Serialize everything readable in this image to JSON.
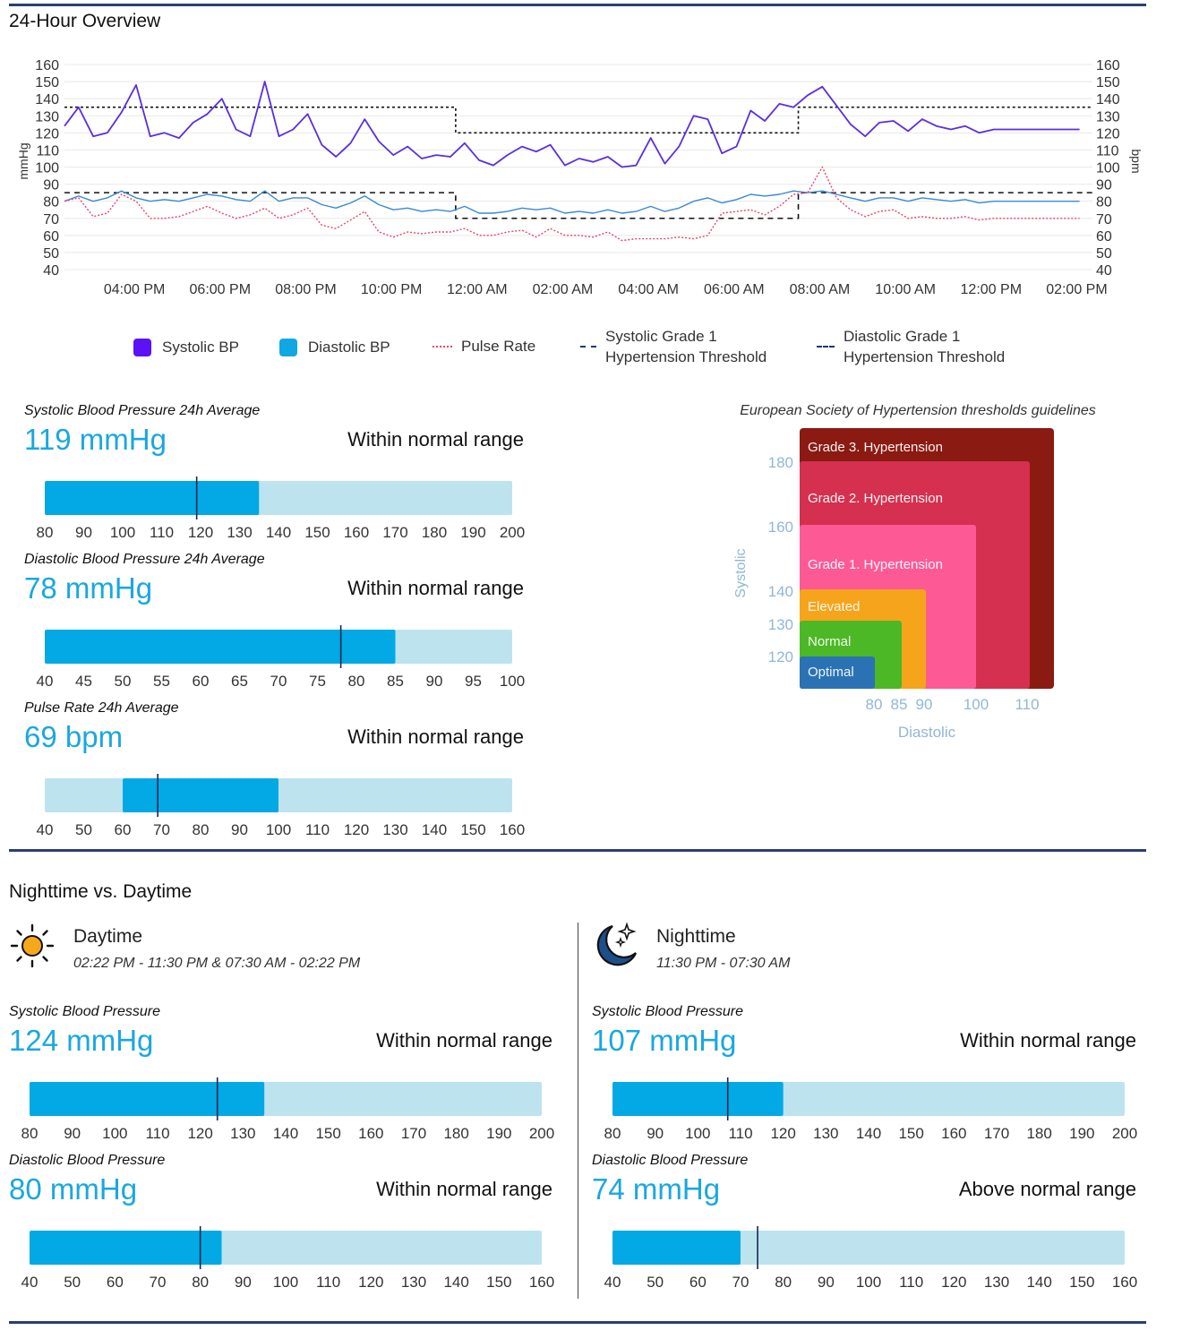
{
  "overview": {
    "title": "24-Hour Overview",
    "left_axis_label": "mmHg",
    "right_axis_label": "bpm",
    "y_ticks": [
      "160",
      "150",
      "140",
      "130",
      "120",
      "110",
      "100",
      "90",
      "80",
      "70",
      "60",
      "50",
      "40"
    ],
    "x_ticks": [
      "04:00 PM",
      "06:00 PM",
      "08:00 PM",
      "10:00 PM",
      "12:00 AM",
      "02:00 AM",
      "04:00 AM",
      "06:00 AM",
      "08:00 AM",
      "10:00 AM",
      "12:00 PM",
      "02:00 PM"
    ]
  },
  "chart_data": [
    {
      "type": "line",
      "title": "24-Hour Overview",
      "ylabel": "mmHg",
      "y2label": "bpm",
      "ylim": [
        40,
        160
      ],
      "x_range": [
        "02:22 PM",
        "02:22 PM"
      ],
      "x_hours": [
        0.0,
        0.33,
        0.67,
        1.0,
        1.33,
        1.67,
        2.0,
        2.33,
        2.67,
        3.0,
        3.33,
        3.67,
        4.0,
        4.33,
        4.67,
        5.0,
        5.33,
        5.67,
        6.0,
        6.33,
        6.67,
        7.0,
        7.33,
        7.67,
        8.0,
        8.33,
        8.67,
        9.0,
        9.33,
        9.67,
        10.0,
        10.33,
        10.67,
        11.0,
        11.33,
        11.67,
        12.0,
        12.33,
        12.67,
        13.0,
        13.33,
        13.67,
        14.0,
        14.33,
        14.67,
        15.0,
        15.33,
        15.67,
        16.0,
        16.33,
        16.67,
        17.0,
        17.33,
        17.67,
        18.0,
        18.33,
        18.67,
        19.0,
        19.33,
        19.67,
        20.0,
        20.33,
        20.67,
        21.0,
        21.33,
        21.67,
        22.0,
        22.33,
        22.67,
        23.0,
        23.33,
        23.67
      ],
      "series": [
        {
          "name": "Systolic BP",
          "color": "#5b2ee0",
          "values": [
            124,
            135,
            118,
            120,
            132,
            148,
            118,
            120,
            117,
            126,
            131,
            140,
            122,
            118,
            150,
            118,
            122,
            131,
            113,
            106,
            114,
            128,
            115,
            107,
            112,
            105,
            107,
            106,
            114,
            104,
            101,
            107,
            112,
            109,
            113,
            101,
            105,
            103,
            106,
            100,
            101,
            117,
            102,
            112,
            130,
            128,
            108,
            112,
            133,
            127,
            137,
            135,
            142,
            147,
            136,
            125,
            118,
            126,
            127,
            121,
            128,
            124,
            122,
            124,
            120,
            122,
            122,
            122,
            122,
            122,
            122,
            122
          ]
        },
        {
          "name": "Diastolic BP",
          "color": "#3a88d6",
          "values": [
            80,
            83,
            80,
            82,
            86,
            82,
            80,
            81,
            80,
            82,
            84,
            83,
            81,
            80,
            86,
            80,
            82,
            82,
            78,
            76,
            79,
            83,
            78,
            75,
            76,
            74,
            75,
            74,
            77,
            73,
            73,
            74,
            76,
            75,
            76,
            73,
            74,
            73,
            75,
            73,
            74,
            77,
            74,
            76,
            80,
            82,
            79,
            81,
            84,
            83,
            84,
            86,
            85,
            86,
            84,
            82,
            80,
            82,
            82,
            80,
            82,
            81,
            80,
            81,
            79,
            80,
            80,
            80,
            80,
            80,
            80,
            80
          ]
        },
        {
          "name": "Pulse Rate",
          "color": "#e8456b",
          "values": [
            80,
            82,
            71,
            73,
            84,
            80,
            70,
            70,
            71,
            74,
            77,
            73,
            70,
            72,
            76,
            70,
            72,
            76,
            66,
            64,
            69,
            74,
            62,
            59,
            62,
            61,
            62,
            62,
            64,
            60,
            60,
            62,
            63,
            59,
            64,
            60,
            60,
            59,
            62,
            57,
            58,
            58,
            58,
            59,
            58,
            60,
            73,
            74,
            75,
            72,
            77,
            84,
            85,
            100,
            82,
            75,
            71,
            74,
            75,
            70,
            71,
            70,
            70,
            71,
            69,
            70,
            70,
            70,
            70,
            70,
            70,
            70
          ]
        }
      ],
      "thresholds": [
        {
          "name": "Systolic Grade 1 Hypertension Threshold",
          "day": 135,
          "night": 120
        },
        {
          "name": "Diastolic Grade 1 Hypertension Threshold",
          "day": 85,
          "night": 70
        }
      ],
      "night_window": [
        "11:30 PM",
        "07:30 AM"
      ]
    },
    {
      "type": "heatmap",
      "title": "European Society of Hypertension thresholds guidelines",
      "xlabel": "Diastolic",
      "ylabel": "Systolic",
      "categories": [
        "Optimal",
        "Normal",
        "Elevated",
        "Grade 1. Hypertension",
        "Grade 2. Hypertension",
        "Grade 3. Hypertension"
      ],
      "values": [
        {
          "label": "Optimal",
          "diastolic_max": 80,
          "systolic_max": 120,
          "color": "#2b72b4"
        },
        {
          "label": "Normal",
          "diastolic_max": 85,
          "systolic_max": 130,
          "color": "#4cb825"
        },
        {
          "label": "Elevated",
          "diastolic_max": 90,
          "systolic_max": 140,
          "color": "#f6a41b"
        },
        {
          "label": "Grade 1. Hypertension",
          "diastolic_max": 100,
          "systolic_max": 160,
          "color": "#fd5a95"
        },
        {
          "label": "Grade 2. Hypertension",
          "diastolic_max": 110,
          "systolic_max": 180,
          "color": "#d5304f"
        },
        {
          "label": "Grade 3. Hypertension",
          "diastolic_max": null,
          "systolic_max": null,
          "color": "#8b1a12"
        }
      ],
      "x_ticks": [
        "80",
        "85",
        "90",
        "100",
        "110"
      ],
      "y_ticks": [
        "180",
        "160",
        "140",
        "130",
        "120"
      ]
    }
  ],
  "legend": [
    {
      "label": "Systolic BP",
      "kind": "box",
      "color": "#5b12f5"
    },
    {
      "label": "Diastolic BP",
      "kind": "box",
      "color": "#11a7e3"
    },
    {
      "label": "Pulse Rate",
      "kind": "dotted",
      "color": "#e8456b"
    },
    {
      "line1": "Systolic Grade 1",
      "line2": "Hypertension Threshold",
      "kind": "dashed",
      "color": "#1e3a6b"
    },
    {
      "line1": "Diastolic Grade 1",
      "line2": "Hypertension Threshold",
      "kind": "dashed",
      "color": "#1e3a6b"
    }
  ],
  "averages": [
    {
      "label": "Systolic Blood Pressure 24h Average",
      "value": "119",
      "unit": "mmHg",
      "status": "Within normal range",
      "min": 80,
      "max": 200,
      "fill_to": 135,
      "fill_from": 80,
      "marker": 119,
      "ticks": [
        "80",
        "90",
        "100",
        "110",
        "120",
        "130",
        "140",
        "150",
        "160",
        "170",
        "180",
        "190",
        "200"
      ]
    },
    {
      "label": "Diastolic Blood Pressure 24h Average",
      "value": "78",
      "unit": "mmHg",
      "status": "Within normal range",
      "min": 40,
      "max": 100,
      "fill_to": 85,
      "fill_from": 40,
      "marker": 78,
      "ticks": [
        "40",
        "45",
        "50",
        "55",
        "60",
        "65",
        "70",
        "75",
        "80",
        "85",
        "90",
        "95",
        "100"
      ]
    },
    {
      "label": "Pulse Rate 24h Average",
      "value": "69",
      "unit": "bpm",
      "status": "Within normal range",
      "min": 40,
      "max": 160,
      "fill_to": 100,
      "fill_from": 60,
      "marker": 69,
      "ticks": [
        "40",
        "50",
        "60",
        "70",
        "80",
        "90",
        "100",
        "110",
        "120",
        "130",
        "140",
        "150",
        "160"
      ]
    }
  ],
  "esh": {
    "title": "European Society of Hypertension thresholds guidelines"
  },
  "daynight": {
    "title": "Nighttime vs. Daytime",
    "day": {
      "title": "Daytime",
      "range": "02:22 PM - 11:30 PM & 07:30 AM - 02:22 PM",
      "icon": "sun-icon",
      "metrics": [
        {
          "label": "Systolic Blood Pressure",
          "value": "124",
          "unit": "mmHg",
          "status": "Within normal range",
          "min": 80,
          "max": 200,
          "fill_from": 80,
          "fill_to": 135,
          "marker": 124,
          "ticks": [
            "80",
            "90",
            "100",
            "110",
            "120",
            "130",
            "140",
            "150",
            "160",
            "170",
            "180",
            "190",
            "200"
          ]
        },
        {
          "label": "Diastolic Blood Pressure",
          "value": "80",
          "unit": "mmHg",
          "status": "Within normal range",
          "min": 40,
          "max": 160,
          "fill_from": 40,
          "fill_to": 85,
          "marker": 80,
          "ticks": [
            "40",
            "50",
            "60",
            "70",
            "80",
            "90",
            "100",
            "110",
            "120",
            "130",
            "140",
            "150",
            "160"
          ]
        }
      ]
    },
    "night": {
      "title": "Nighttime",
      "range": "11:30 PM - 07:30 AM",
      "icon": "moon-stars-icon",
      "metrics": [
        {
          "label": "Systolic Blood Pressure",
          "value": "107",
          "unit": "mmHg",
          "status": "Within normal range",
          "min": 80,
          "max": 200,
          "fill_from": 80,
          "fill_to": 120,
          "marker": 107,
          "ticks": [
            "80",
            "90",
            "100",
            "110",
            "120",
            "130",
            "140",
            "150",
            "160",
            "170",
            "180",
            "190",
            "200"
          ]
        },
        {
          "label": "Diastolic Blood Pressure",
          "value": "74",
          "unit": "mmHg",
          "status": "Above normal range",
          "min": 40,
          "max": 160,
          "fill_from": 40,
          "fill_to": 70,
          "marker": 74,
          "ticks": [
            "40",
            "50",
            "60",
            "70",
            "80",
            "90",
            "100",
            "110",
            "120",
            "130",
            "140",
            "150",
            "160"
          ]
        }
      ]
    }
  }
}
